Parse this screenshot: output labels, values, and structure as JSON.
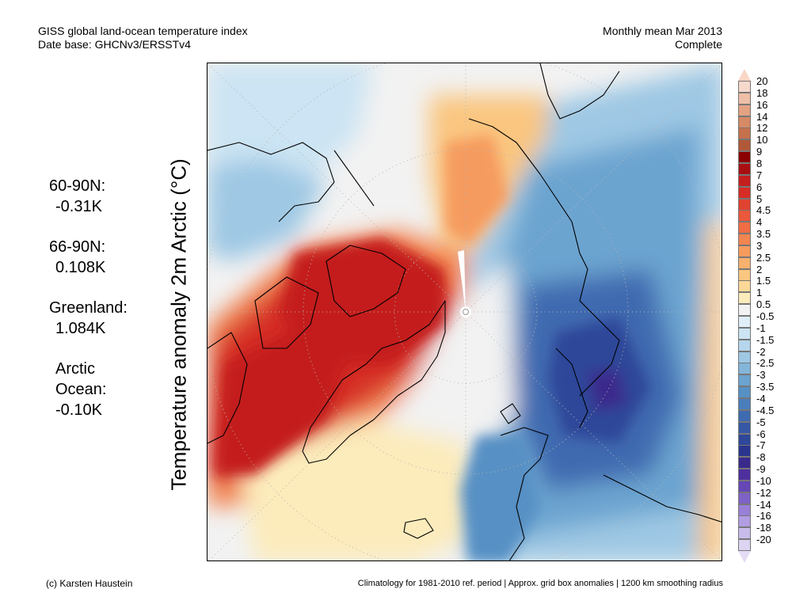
{
  "header": {
    "title_line1": "GISS global land-ocean temperature index",
    "title_line2": "Date base: GHCNv3/ERSSTv4",
    "right_line1": "Monthly mean Mar 2013",
    "right_line2": "Complete"
  },
  "y_axis_label": "Temperature anomaly 2m Arctic (°C)",
  "stats": [
    {
      "label": "60-90N:",
      "value": "-0.31K"
    },
    {
      "label": "66-90N:",
      "value": "0.108K"
    },
    {
      "label": "Greenland:",
      "value": "1.084K"
    },
    {
      "label": "Arctic",
      "label2": "Ocean:",
      "value": "-0.10K"
    }
  ],
  "colorbar": {
    "unit": "°C",
    "levels": [
      {
        "label": "20",
        "color": "#f7d9cc"
      },
      {
        "label": "18",
        "color": "#eebfa7"
      },
      {
        "label": "16",
        "color": "#e3a383"
      },
      {
        "label": "14",
        "color": "#d68a66"
      },
      {
        "label": "12",
        "color": "#c6714d"
      },
      {
        "label": "10",
        "color": "#b05939"
      },
      {
        "label": "9",
        "color": "#8b0000"
      },
      {
        "label": "8",
        "color": "#a80f12"
      },
      {
        "label": "7",
        "color": "#c41e1e"
      },
      {
        "label": "6",
        "color": "#d52d26"
      },
      {
        "label": "5",
        "color": "#e04330"
      },
      {
        "label": "4.5",
        "color": "#e9583b"
      },
      {
        "label": "4",
        "color": "#ef6d45"
      },
      {
        "label": "3.5",
        "color": "#f38551"
      },
      {
        "label": "3",
        "color": "#f69b5e"
      },
      {
        "label": "2.5",
        "color": "#f8b16e"
      },
      {
        "label": "2",
        "color": "#fac680"
      },
      {
        "label": "1.5",
        "color": "#fbd896"
      },
      {
        "label": "1",
        "color": "#fcebbb"
      },
      {
        "label": "0.5",
        "color": "#f2f2f2"
      },
      {
        "label": "-0.5",
        "color": "#dfeef8"
      },
      {
        "label": "-1",
        "color": "#cce4f3"
      },
      {
        "label": "-1.5",
        "color": "#b5d6ec"
      },
      {
        "label": "-2",
        "color": "#9ec8e4"
      },
      {
        "label": "-2.5",
        "color": "#84b6da"
      },
      {
        "label": "-3",
        "color": "#6ca4d0"
      },
      {
        "label": "-3.5",
        "color": "#5790c4"
      },
      {
        "label": "-4",
        "color": "#4a7ebb"
      },
      {
        "label": "-4.5",
        "color": "#3f6bb0"
      },
      {
        "label": "-5",
        "color": "#3658a4"
      },
      {
        "label": "-6",
        "color": "#2f4799"
      },
      {
        "label": "-7",
        "color": "#2a358e"
      },
      {
        "label": "-8",
        "color": "#3a2a8c"
      },
      {
        "label": "-9",
        "color": "#4e2f9e"
      },
      {
        "label": "-10",
        "color": "#6647b5"
      },
      {
        "label": "-12",
        "color": "#7e62c6"
      },
      {
        "label": "-14",
        "color": "#9980d6"
      },
      {
        "label": "-16",
        "color": "#b19de2"
      },
      {
        "label": "-18",
        "color": "#c9bceb"
      },
      {
        "label": "-20",
        "color": "#ddd4f2"
      }
    ],
    "top_arrow_color": "#f9d6c6",
    "bottom_arrow_color": "#e4dcf5"
  },
  "footer": {
    "left": "(c) Karsten Haustein",
    "right": "Climatology for 1981-2010 ref. period | Approx. grid box anomalies | 1200 km smoothing radius"
  }
}
